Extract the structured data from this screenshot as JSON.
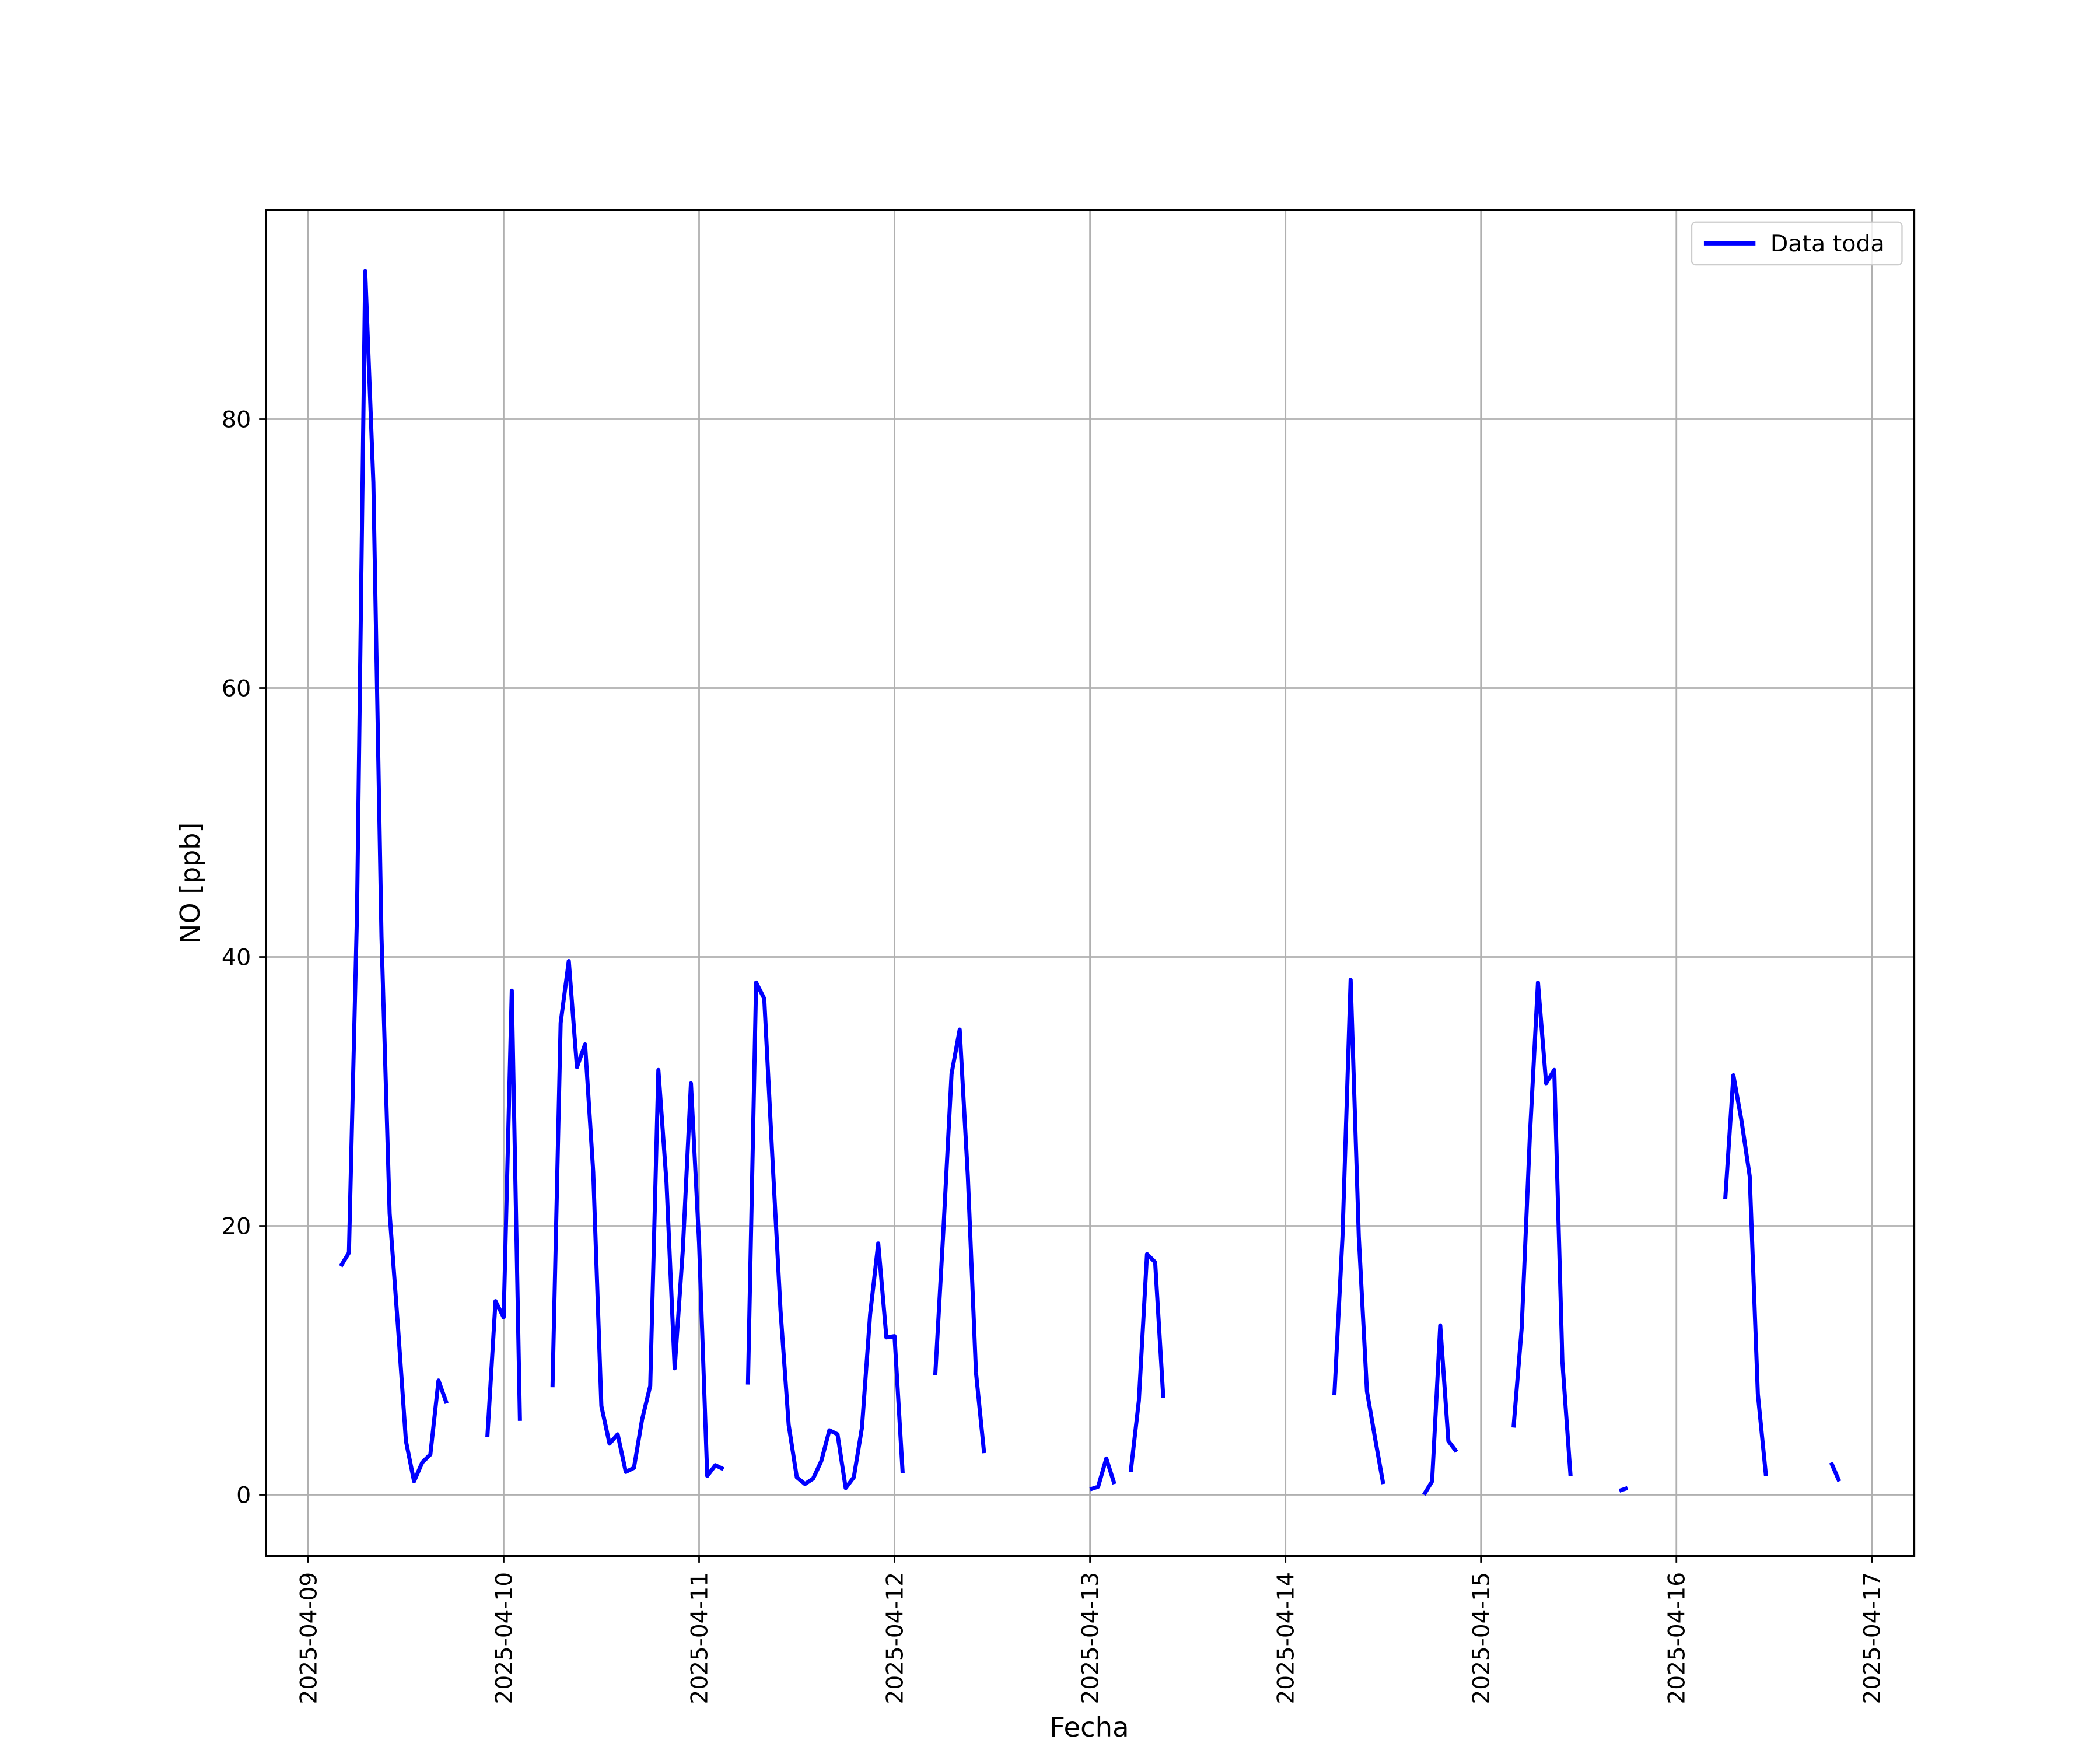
{
  "chart_data": {
    "type": "line",
    "x_label": "Fecha",
    "y_label": "NO [ppb]",
    "xlim": [
      "2025-04-08 18:48",
      "2025-04-17 05:12"
    ],
    "xticks": [
      "2025-04-09",
      "2025-04-10",
      "2025-04-11",
      "2025-04-12",
      "2025-04-13",
      "2025-04-14",
      "2025-04-15",
      "2025-04-16",
      "2025-04-17"
    ],
    "ylim": [
      -4.55,
      95.55
    ],
    "yticks": [
      0,
      20,
      40,
      60,
      80
    ],
    "grid": true,
    "legend": "upper right",
    "x": [
      "2025-04-09 04:00",
      "2025-04-09 05:00",
      "2025-04-09 06:00",
      "2025-04-09 07:00",
      "2025-04-09 08:00",
      "2025-04-09 09:00",
      "2025-04-09 10:00",
      "2025-04-09 11:00",
      "2025-04-09 12:00",
      "2025-04-09 13:00",
      "2025-04-09 14:00",
      "2025-04-09 15:00",
      "2025-04-09 16:00",
      "2025-04-09 17:00",
      "2025-04-09 18:00",
      "2025-04-09 22:00",
      "2025-04-09 23:00",
      "2025-04-10 00:00",
      "2025-04-10 01:00",
      "2025-04-10 02:00",
      "2025-04-10 03:00",
      "2025-04-10 06:00",
      "2025-04-10 07:00",
      "2025-04-10 08:00",
      "2025-04-10 09:00",
      "2025-04-10 10:00",
      "2025-04-10 11:00",
      "2025-04-10 12:00",
      "2025-04-10 13:00",
      "2025-04-10 14:00",
      "2025-04-10 15:00",
      "2025-04-10 16:00",
      "2025-04-10 17:00",
      "2025-04-10 18:00",
      "2025-04-10 19:00",
      "2025-04-10 20:00",
      "2025-04-10 21:00",
      "2025-04-10 22:00",
      "2025-04-10 23:00",
      "2025-04-11 00:00",
      "2025-04-11 01:00",
      "2025-04-11 02:00",
      "2025-04-11 03:00",
      "2025-04-11 04:00",
      "2025-04-11 06:00",
      "2025-04-11 07:00",
      "2025-04-11 08:00",
      "2025-04-11 09:00",
      "2025-04-11 10:00",
      "2025-04-11 11:00",
      "2025-04-11 12:00",
      "2025-04-11 13:00",
      "2025-04-11 14:00",
      "2025-04-11 15:00",
      "2025-04-11 16:00",
      "2025-04-11 17:00",
      "2025-04-11 18:00",
      "2025-04-11 19:00",
      "2025-04-11 20:00",
      "2025-04-11 21:00",
      "2025-04-11 22:00",
      "2025-04-11 23:00",
      "2025-04-12 00:00",
      "2025-04-12 01:00",
      "2025-04-12 02:00",
      "2025-04-12 05:00",
      "2025-04-12 06:00",
      "2025-04-12 07:00",
      "2025-04-12 08:00",
      "2025-04-12 09:00",
      "2025-04-12 10:00",
      "2025-04-12 11:00",
      "2025-04-12 12:00",
      "2025-04-13 00:00",
      "2025-04-13 01:00",
      "2025-04-13 02:00",
      "2025-04-13 03:00",
      "2025-04-13 04:00",
      "2025-04-13 05:00",
      "2025-04-13 06:00",
      "2025-04-13 07:00",
      "2025-04-13 08:00",
      "2025-04-13 09:00",
      "2025-04-13 10:00",
      "2025-04-14 06:00",
      "2025-04-14 07:00",
      "2025-04-14 08:00",
      "2025-04-14 09:00",
      "2025-04-14 10:00",
      "2025-04-14 11:00",
      "2025-04-14 12:00",
      "2025-04-14 13:00",
      "2025-04-14 17:00",
      "2025-04-14 18:00",
      "2025-04-14 19:00",
      "2025-04-14 20:00",
      "2025-04-14 21:00",
      "2025-04-14 22:00",
      "2025-04-15 04:00",
      "2025-04-15 05:00",
      "2025-04-15 06:00",
      "2025-04-15 07:00",
      "2025-04-15 08:00",
      "2025-04-15 09:00",
      "2025-04-15 10:00",
      "2025-04-15 11:00",
      "2025-04-15 12:00",
      "2025-04-15 17:00",
      "2025-04-15 18:00",
      "2025-04-15 19:00",
      "2025-04-16 06:00",
      "2025-04-16 07:00",
      "2025-04-16 08:00",
      "2025-04-16 09:00",
      "2025-04-16 10:00",
      "2025-04-16 11:00",
      "2025-04-16 12:00",
      "2025-04-16 19:00",
      "2025-04-16 20:00"
    ],
    "series": [
      {
        "name": "Data toda",
        "color": "#0000ff",
        "values": [
          17.0,
          18.0,
          43.5,
          91.0,
          75.3,
          41.5,
          20.9,
          12.7,
          4.0,
          1.0,
          2.4,
          3.0,
          8.5,
          6.8,
          null,
          4.3,
          14.4,
          13.2,
          37.5,
          5.5,
          null,
          8.0,
          35.1,
          39.7,
          31.8,
          33.5,
          24.0,
          6.6,
          3.8,
          4.5,
          1.7,
          2.0,
          5.6,
          8.1,
          31.6,
          23.2,
          9.4,
          18.2,
          30.6,
          18.7,
          1.4,
          2.2,
          1.9,
          null,
          8.2,
          38.1,
          36.9,
          25.1,
          13.7,
          5.2,
          1.3,
          0.8,
          1.2,
          2.5,
          4.8,
          4.5,
          0.5,
          1.3,
          5.0,
          13.4,
          18.7,
          11.7,
          11.8,
          1.6,
          null,
          8.9,
          19.7,
          31.3,
          34.6,
          23.7,
          9.1,
          3.1,
          null,
          0.4,
          0.6,
          2.7,
          0.8,
          null,
          1.7,
          7.0,
          17.9,
          17.3,
          7.2,
          null,
          7.4,
          19.2,
          38.3,
          19.2,
          7.7,
          4.2,
          0.8,
          null,
          0.0,
          1.0,
          12.6,
          4.0,
          3.2,
          null,
          5.0,
          12.4,
          26.6,
          38.1,
          30.6,
          31.6,
          9.9,
          1.4,
          null,
          0.3,
          0.5,
          null,
          22.0,
          31.2,
          27.8,
          23.7,
          7.5,
          1.4,
          null,
          2.4,
          1.0
        ]
      }
    ]
  }
}
